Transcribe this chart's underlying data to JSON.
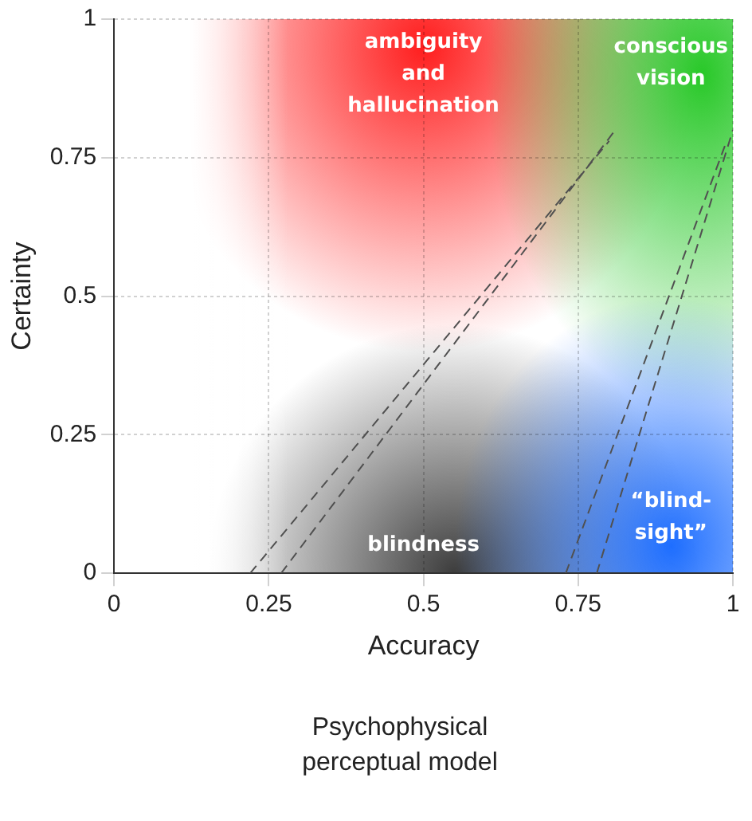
{
  "chart_data": {
    "type": "line",
    "title": "Psychophysical perceptual model",
    "xlabel": "Accuracy",
    "ylabel": "Certainty",
    "xlim": [
      0,
      1
    ],
    "ylim": [
      0,
      1
    ],
    "xticks": [
      0,
      0.25,
      0.5,
      0.75,
      1
    ],
    "yticks": [
      0,
      0.25,
      0.5,
      0.75,
      1
    ],
    "grid": true,
    "legend": false,
    "marker": "none",
    "line_style": "dashed",
    "series": [
      {
        "color": "#505050",
        "x": [
          0.22,
          0.8
        ],
        "values": [
          0,
          0.78
        ]
      },
      {
        "color": "#505050",
        "x": [
          0.27,
          0.81
        ],
        "values": [
          0,
          0.8
        ]
      },
      {
        "color": "#505050",
        "x": [
          0.73,
          0.99
        ],
        "values": [
          0,
          0.78
        ]
      },
      {
        "color": "#505050",
        "x": [
          0.78,
          1.0
        ],
        "values": [
          0,
          0.8
        ]
      }
    ],
    "annotations": [
      "ambiguity and hallucination",
      "conscious vision",
      "blindness",
      "“blind-sight”"
    ]
  }
}
